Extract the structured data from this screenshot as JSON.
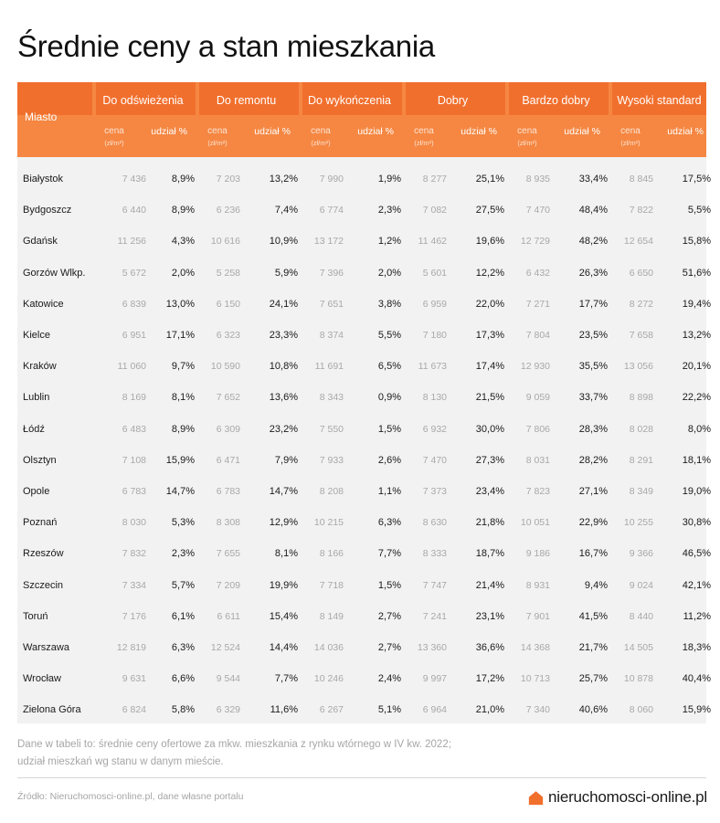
{
  "title": "Średnie ceny a stan mieszkania",
  "table": {
    "city_header": "Miasto",
    "groups": [
      "Do odświeżenia",
      "Do remontu",
      "Do wykończenia",
      "Dobry",
      "Bardzo dobry",
      "Wysoki standard"
    ],
    "price_label": "cena",
    "price_unit": "(zł/m²)",
    "share_label": "udział %",
    "rows": [
      {
        "city": "Białystok",
        "values": [
          "7 436",
          "8,9%",
          "7 203",
          "13,2%",
          "7 990",
          "1,9%",
          "8 277",
          "25,1%",
          "8 935",
          "33,4%",
          "8 845",
          "17,5%"
        ]
      },
      {
        "city": "Bydgoszcz",
        "values": [
          "6 440",
          "8,9%",
          "6 236",
          "7,4%",
          "6 774",
          "2,3%",
          "7 082",
          "27,5%",
          "7 470",
          "48,4%",
          "7 822",
          "5,5%"
        ]
      },
      {
        "city": "Gdańsk",
        "values": [
          "11 256",
          "4,3%",
          "10 616",
          "10,9%",
          "13 172",
          "1,2%",
          "11 462",
          "19,6%",
          "12 729",
          "48,2%",
          "12 654",
          "15,8%"
        ]
      },
      {
        "city": "Gorzów Wlkp.",
        "values": [
          "5 672",
          "2,0%",
          "5 258",
          "5,9%",
          "7 396",
          "2,0%",
          "5 601",
          "12,2%",
          "6 432",
          "26,3%",
          "6 650",
          "51,6%"
        ]
      },
      {
        "city": "Katowice",
        "values": [
          "6 839",
          "13,0%",
          "6 150",
          "24,1%",
          "7 651",
          "3,8%",
          "6 959",
          "22,0%",
          "7 271",
          "17,7%",
          "8 272",
          "19,4%"
        ]
      },
      {
        "city": "Kielce",
        "values": [
          "6 951",
          "17,1%",
          "6 323",
          "23,3%",
          "8 374",
          "5,5%",
          "7 180",
          "17,3%",
          "7 804",
          "23,5%",
          "7 658",
          "13,2%"
        ]
      },
      {
        "city": "Kraków",
        "values": [
          "11 060",
          "9,7%",
          "10 590",
          "10,8%",
          "11 691",
          "6,5%",
          "11 673",
          "17,4%",
          "12 930",
          "35,5%",
          "13 056",
          "20,1%"
        ]
      },
      {
        "city": "Lublin",
        "values": [
          "8 169",
          "8,1%",
          "7 652",
          "13,6%",
          "8 343",
          "0,9%",
          "8 130",
          "21,5%",
          "9 059",
          "33,7%",
          "8 898",
          "22,2%"
        ]
      },
      {
        "city": "Łódź",
        "values": [
          "6 483",
          "8,9%",
          "6 309",
          "23,2%",
          "7 550",
          "1,5%",
          "6 932",
          "30,0%",
          "7 806",
          "28,3%",
          "8 028",
          "8,0%"
        ]
      },
      {
        "city": "Olsztyn",
        "values": [
          "7 108",
          "15,9%",
          "6 471",
          "7,9%",
          "7 933",
          "2,6%",
          "7 470",
          "27,3%",
          "8 031",
          "28,2%",
          "8 291",
          "18,1%"
        ]
      },
      {
        "city": "Opole",
        "values": [
          "6 783",
          "14,7%",
          "6 783",
          "14,7%",
          "8 208",
          "1,1%",
          "7 373",
          "23,4%",
          "7 823",
          "27,1%",
          "8 349",
          "19,0%"
        ]
      },
      {
        "city": "Poznań",
        "values": [
          "8 030",
          "5,3%",
          "8 308",
          "12,9%",
          "10 215",
          "6,3%",
          "8 630",
          "21,8%",
          "10 051",
          "22,9%",
          "10 255",
          "30,8%"
        ]
      },
      {
        "city": "Rzeszów",
        "values": [
          "7 832",
          "2,3%",
          "7 655",
          "8,1%",
          "8 166",
          "7,7%",
          "8 333",
          "18,7%",
          "9 186",
          "16,7%",
          "9 366",
          "46,5%"
        ]
      },
      {
        "city": "Szczecin",
        "values": [
          "7 334",
          "5,7%",
          "7 209",
          "19,9%",
          "7 718",
          "1,5%",
          "7 747",
          "21,4%",
          "8 931",
          "9,4%",
          "9 024",
          "42,1%"
        ]
      },
      {
        "city": "Toruń",
        "values": [
          "7 176",
          "6,1%",
          "6 611",
          "15,4%",
          "8 149",
          "2,7%",
          "7 241",
          "23,1%",
          "7 901",
          "41,5%",
          "8 440",
          "11,2%"
        ]
      },
      {
        "city": "Warszawa",
        "values": [
          "12 819",
          "6,3%",
          "12 524",
          "14,4%",
          "14 036",
          "2,7%",
          "13 360",
          "36,6%",
          "14 368",
          "21,7%",
          "14 505",
          "18,3%"
        ]
      },
      {
        "city": "Wrocław",
        "values": [
          "9 631",
          "6,6%",
          "9 544",
          "7,7%",
          "10 246",
          "2,4%",
          "9 997",
          "17,2%",
          "10 713",
          "25,7%",
          "10 878",
          "40,4%"
        ]
      },
      {
        "city": "Zielona Góra",
        "values": [
          "6 824",
          "5,8%",
          "6 329",
          "11,6%",
          "6 267",
          "5,1%",
          "6 964",
          "21,0%",
          "7 340",
          "40,6%",
          "8 060",
          "15,9%"
        ]
      }
    ]
  },
  "note_line1": "Dane w tabeli to: średnie ceny ofertowe za mkw. mieszkania z rynku wtórnego w IV kw. 2022;",
  "note_line2": "udział mieszkań wg stanu w danym mieście.",
  "source": "Źródło: Nieruchomosci-online.pl, dane własne portalu",
  "brand": "nieruchomosci-online.pl",
  "colors": {
    "header_dark": "#f16f2d",
    "header_light": "#f58742",
    "body_bg": "#f2f2f2",
    "brand_accent": "#f16f2d"
  },
  "chart_data": {
    "type": "table",
    "title": "Średnie ceny a stan mieszkania",
    "columns": [
      "Miasto",
      "Do odświeżenia cena (zł/m²)",
      "Do odświeżenia udział %",
      "Do remontu cena (zł/m²)",
      "Do remontu udział %",
      "Do wykończenia cena (zł/m²)",
      "Do wykończenia udział %",
      "Dobry cena (zł/m²)",
      "Dobry udział %",
      "Bardzo dobry cena (zł/m²)",
      "Bardzo dobry udział %",
      "Wysoki standard cena (zł/m²)",
      "Wysoki standard udział %"
    ],
    "rows": [
      [
        "Białystok",
        7436,
        8.9,
        7203,
        13.2,
        7990,
        1.9,
        8277,
        25.1,
        8935,
        33.4,
        8845,
        17.5
      ],
      [
        "Bydgoszcz",
        6440,
        8.9,
        6236,
        7.4,
        6774,
        2.3,
        7082,
        27.5,
        7470,
        48.4,
        7822,
        5.5
      ],
      [
        "Gdańsk",
        11256,
        4.3,
        10616,
        10.9,
        13172,
        1.2,
        11462,
        19.6,
        12729,
        48.2,
        12654,
        15.8
      ],
      [
        "Gorzów Wlkp.",
        5672,
        2.0,
        5258,
        5.9,
        7396,
        2.0,
        5601,
        12.2,
        6432,
        26.3,
        6650,
        51.6
      ],
      [
        "Katowice",
        6839,
        13.0,
        6150,
        24.1,
        7651,
        3.8,
        6959,
        22.0,
        7271,
        17.7,
        8272,
        19.4
      ],
      [
        "Kielce",
        6951,
        17.1,
        6323,
        23.3,
        8374,
        5.5,
        7180,
        17.3,
        7804,
        23.5,
        7658,
        13.2
      ],
      [
        "Kraków",
        11060,
        9.7,
        10590,
        10.8,
        11691,
        6.5,
        11673,
        17.4,
        12930,
        35.5,
        13056,
        20.1
      ],
      [
        "Lublin",
        8169,
        8.1,
        7652,
        13.6,
        8343,
        0.9,
        8130,
        21.5,
        9059,
        33.7,
        8898,
        22.2
      ],
      [
        "Łódź",
        6483,
        8.9,
        6309,
        23.2,
        7550,
        1.5,
        6932,
        30.0,
        7806,
        28.3,
        8028,
        8.0
      ],
      [
        "Olsztyn",
        7108,
        15.9,
        6471,
        7.9,
        7933,
        2.6,
        7470,
        27.3,
        8031,
        28.2,
        8291,
        18.1
      ],
      [
        "Opole",
        6783,
        14.7,
        6783,
        14.7,
        8208,
        1.1,
        7373,
        23.4,
        7823,
        27.1,
        8349,
        19.0
      ],
      [
        "Poznań",
        8030,
        5.3,
        8308,
        12.9,
        10215,
        6.3,
        8630,
        21.8,
        10051,
        22.9,
        10255,
        30.8
      ],
      [
        "Rzeszów",
        7832,
        2.3,
        7655,
        8.1,
        8166,
        7.7,
        8333,
        18.7,
        9186,
        16.7,
        9366,
        46.5
      ],
      [
        "Szczecin",
        7334,
        5.7,
        7209,
        19.9,
        7718,
        1.5,
        7747,
        21.4,
        8931,
        9.4,
        9024,
        42.1
      ],
      [
        "Toruń",
        7176,
        6.1,
        6611,
        15.4,
        8149,
        2.7,
        7241,
        23.1,
        7901,
        41.5,
        8440,
        11.2
      ],
      [
        "Warszawa",
        12819,
        6.3,
        12524,
        14.4,
        14036,
        2.7,
        13360,
        36.6,
        14368,
        21.7,
        14505,
        18.3
      ],
      [
        "Wrocław",
        9631,
        6.6,
        9544,
        7.7,
        10246,
        2.4,
        9997,
        17.2,
        10713,
        25.7,
        10878,
        40.4
      ],
      [
        "Zielona Góra",
        6824,
        5.8,
        6329,
        11.6,
        6267,
        5.1,
        6964,
        21.0,
        7340,
        40.6,
        8060,
        15.9
      ]
    ]
  }
}
